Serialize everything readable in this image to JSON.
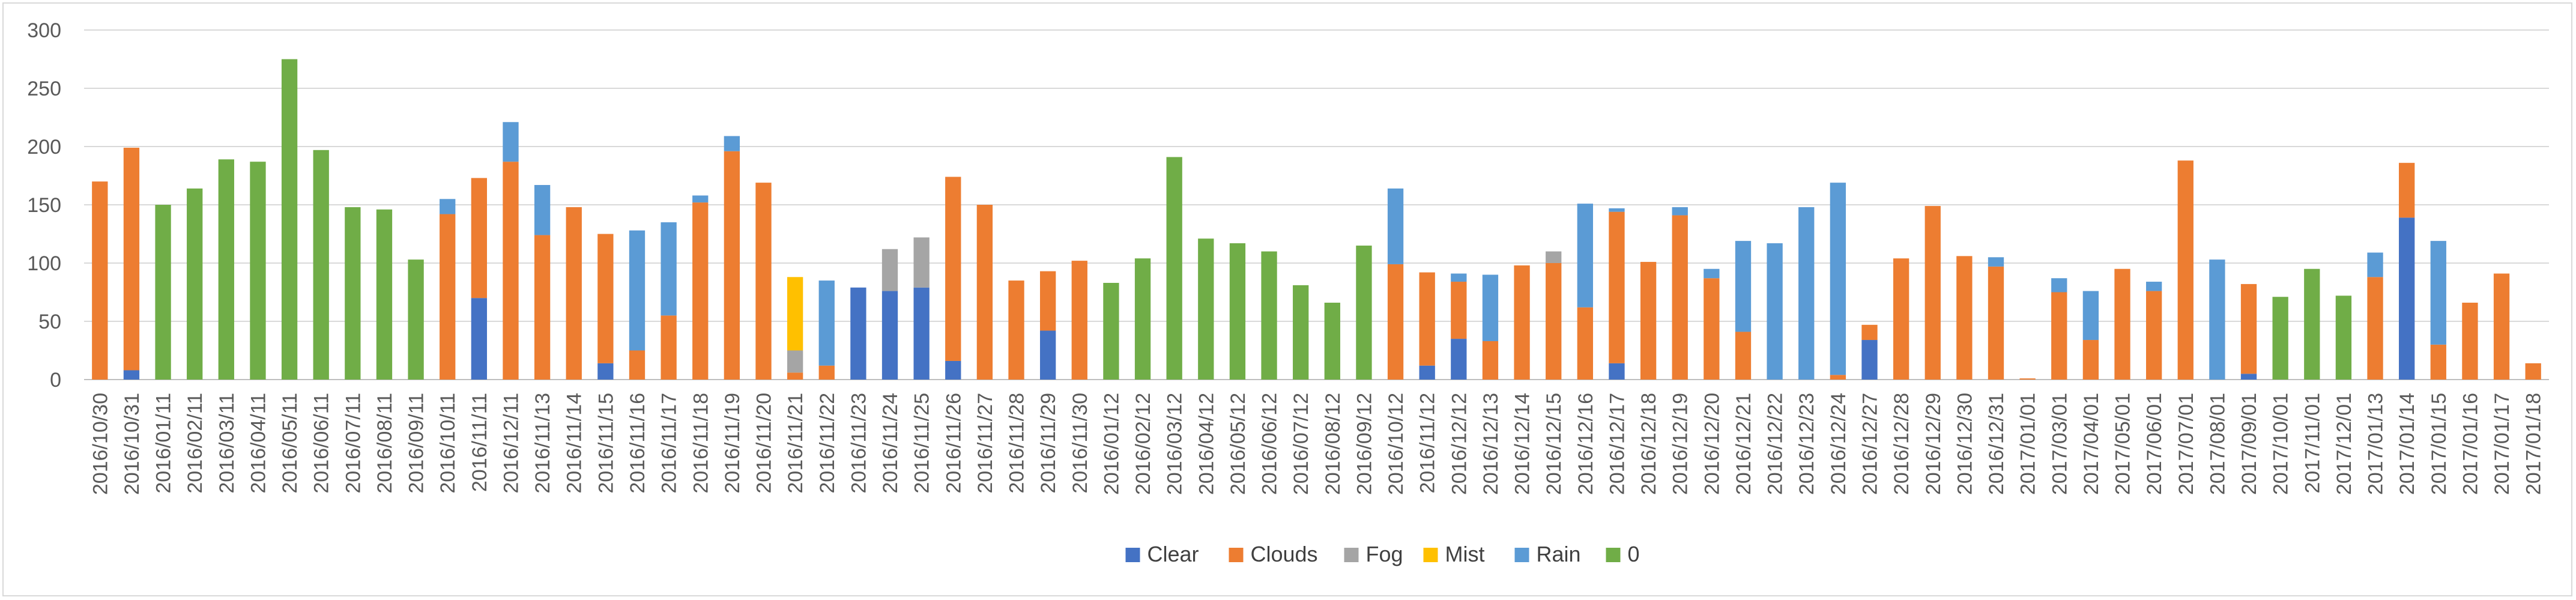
{
  "chart_data": {
    "type": "bar",
    "stacked": true,
    "ylim": [
      0,
      300
    ],
    "yticks": [
      0,
      50,
      100,
      150,
      200,
      250,
      300
    ],
    "grid": true,
    "legend_position": "bottom",
    "series": [
      {
        "name": "Clear",
        "color": "#4472c4"
      },
      {
        "name": "Clouds",
        "color": "#ed7d31"
      },
      {
        "name": "Fog",
        "color": "#a5a5a5"
      },
      {
        "name": "Mist",
        "color": "#ffc000"
      },
      {
        "name": "Rain",
        "color": "#5b9bd5"
      },
      {
        "name": "0",
        "color": "#70ad47"
      }
    ],
    "categories": [
      "2016/10/30",
      "2016/10/31",
      "2016/01/11",
      "2016/02/11",
      "2016/03/11",
      "2016/04/11",
      "2016/05/11",
      "2016/06/11",
      "2016/07/11",
      "2016/08/11",
      "2016/09/11",
      "2016/10/11",
      "2016/11/11",
      "2016/12/11",
      "2016/11/13",
      "2016/11/14",
      "2016/11/15",
      "2016/11/16",
      "2016/11/17",
      "2016/11/18",
      "2016/11/19",
      "2016/11/20",
      "2016/11/21",
      "2016/11/22",
      "2016/11/23",
      "2016/11/24",
      "2016/11/25",
      "2016/11/26",
      "2016/11/27",
      "2016/11/28",
      "2016/11/29",
      "2016/11/30",
      "2016/01/12",
      "2016/02/12",
      "2016/03/12",
      "2016/04/12",
      "2016/05/12",
      "2016/06/12",
      "2016/07/12",
      "2016/08/12",
      "2016/09/12",
      "2016/10/12",
      "2016/11/12",
      "2016/12/12",
      "2016/12/13",
      "2016/12/14",
      "2016/12/15",
      "2016/12/16",
      "2016/12/17",
      "2016/12/18",
      "2016/12/19",
      "2016/12/20",
      "2016/12/21",
      "2016/12/22",
      "2016/12/23",
      "2016/12/24",
      "2016/12/27",
      "2016/12/28",
      "2016/12/29",
      "2016/12/30",
      "2016/12/31",
      "2017/01/01",
      "2017/03/01",
      "2017/04/01",
      "2017/05/01",
      "2017/06/01",
      "2017/07/01",
      "2017/08/01",
      "2017/09/01",
      "2017/10/01",
      "2017/11/01",
      "2017/12/01",
      "2017/01/13",
      "2017/01/14",
      "2017/01/15",
      "2017/01/16",
      "2017/01/17",
      "2017/01/18"
    ],
    "values": [
      {
        "Clouds": 170
      },
      {
        "Clear": 8,
        "Clouds": 191
      },
      {
        "0": 150
      },
      {
        "0": 164
      },
      {
        "0": 189
      },
      {
        "0": 187
      },
      {
        "0": 275
      },
      {
        "0": 197
      },
      {
        "0": 148
      },
      {
        "0": 146
      },
      {
        "0": 103
      },
      {
        "Clouds": 142,
        "Rain": 13
      },
      {
        "Clear": 70,
        "Clouds": 103
      },
      {
        "Clouds": 187,
        "Rain": 34
      },
      {
        "Clouds": 124,
        "Rain": 43
      },
      {
        "Clouds": 148
      },
      {
        "Clear": 14,
        "Clouds": 111
      },
      {
        "Clouds": 25,
        "Rain": 103
      },
      {
        "Clouds": 55,
        "Rain": 80
      },
      {
        "Clouds": 152,
        "Rain": 6
      },
      {
        "Clouds": 196,
        "Rain": 13
      },
      {
        "Clouds": 169
      },
      {
        "Clouds": 6,
        "Fog": 19,
        "Mist": 63
      },
      {
        "Clouds": 12,
        "Rain": 73
      },
      {
        "Clear": 79
      },
      {
        "Clear": 76,
        "Fog": 36
      },
      {
        "Clear": 79,
        "Fog": 43
      },
      {
        "Clear": 16,
        "Clouds": 158
      },
      {
        "Clouds": 150
      },
      {
        "Clouds": 85
      },
      {
        "Clear": 42,
        "Clouds": 51
      },
      {
        "Clouds": 102
      },
      {
        "0": 83
      },
      {
        "0": 104
      },
      {
        "0": 191
      },
      {
        "0": 121
      },
      {
        "0": 117
      },
      {
        "0": 110
      },
      {
        "0": 81
      },
      {
        "0": 66
      },
      {
        "0": 115
      },
      {
        "Clouds": 99,
        "Rain": 65
      },
      {
        "Clear": 12,
        "Clouds": 80
      },
      {
        "Clear": 35,
        "Clouds": 49,
        "Rain": 7
      },
      {
        "Clouds": 33,
        "Rain": 57
      },
      {
        "Clouds": 98
      },
      {
        "Clouds": 100,
        "Fog": 10
      },
      {
        "Clouds": 62,
        "Rain": 89
      },
      {
        "Clear": 14,
        "Clouds": 130,
        "Rain": 3
      },
      {
        "Clouds": 101
      },
      {
        "Clouds": 141,
        "Rain": 7
      },
      {
        "Clouds": 87,
        "Rain": 8
      },
      {
        "Clouds": 41,
        "Rain": 78
      },
      {
        "Rain": 117
      },
      {
        "Rain": 148
      },
      {
        "Clouds": 4,
        "Rain": 165
      },
      {
        "Clear": 34,
        "Clouds": 13
      },
      {
        "Clouds": 104
      },
      {
        "Clouds": 149
      },
      {
        "Clouds": 106
      },
      {
        "Clouds": 97,
        "Rain": 8
      },
      {
        "Clouds": 1
      },
      {
        "Clouds": 75,
        "Rain": 12
      },
      {
        "Clouds": 34,
        "Rain": 42
      },
      {
        "Clouds": 95
      },
      {
        "Clouds": 76,
        "Rain": 8
      },
      {
        "Clouds": 188
      },
      {
        "Rain": 103
      },
      {
        "Clear": 5,
        "Clouds": 77
      },
      {
        "0": 71
      },
      {
        "0": 95
      },
      {
        "0": 72
      },
      {
        "Clouds": 88,
        "Rain": 21
      },
      {
        "Clear": 139,
        "Clouds": 47
      },
      {
        "Clouds": 30,
        "Rain": 89
      },
      {
        "Clouds": 66
      },
      {
        "Clouds": 91
      },
      {
        "Clouds": 14
      }
    ]
  }
}
